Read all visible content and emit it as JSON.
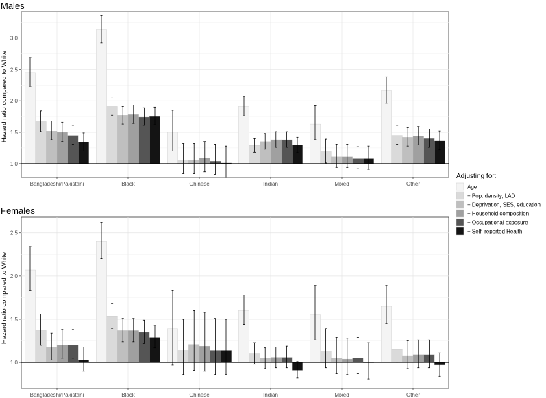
{
  "legend": {
    "title": "Adjusting for:",
    "entries": [
      {
        "name": "Age",
        "color": "#f4f4f4"
      },
      {
        "name": "+ Pop. density, LAD",
        "color": "#dadada"
      },
      {
        "name": "+ Deprivation, SES, education",
        "color": "#bfbfbf"
      },
      {
        "name": "+ Household composition",
        "color": "#a0a0a0"
      },
      {
        "name": "+ Occupational exposure",
        "color": "#555555"
      },
      {
        "name": "+ Self–reported Health",
        "color": "#141414"
      }
    ]
  },
  "chart_data": [
    {
      "type": "bar",
      "title": "Males",
      "ylabel": "Hazard ratio compared to White",
      "xlabel": "",
      "baseline": 1.0,
      "ylim": [
        0.78,
        3.42
      ],
      "yticks": [
        "1.0",
        "1.5",
        "2.0",
        "2.5",
        "3.0"
      ],
      "grid": true,
      "categories": [
        "Bangladeshi/Pakistani",
        "Black",
        "Chinese",
        "Indian",
        "Mixed",
        "Other"
      ],
      "series": [
        {
          "name": "Age",
          "values": [
            2.45,
            3.13,
            1.5,
            1.91,
            1.63,
            2.16
          ],
          "lower": [
            2.23,
            2.92,
            1.2,
            1.76,
            1.38,
            1.96
          ],
          "upper": [
            2.69,
            3.36,
            1.85,
            2.07,
            1.92,
            2.38
          ]
        },
        {
          "name": "+ Pop. density, LAD",
          "values": [
            1.67,
            1.91,
            1.06,
            1.29,
            1.19,
            1.45
          ],
          "lower": [
            1.51,
            1.77,
            0.84,
            1.18,
            1.01,
            1.31
          ],
          "upper": [
            1.84,
            2.06,
            1.32,
            1.4,
            1.39,
            1.61
          ]
        },
        {
          "name": "+ Deprivation, SES, education",
          "values": [
            1.52,
            1.77,
            1.06,
            1.35,
            1.11,
            1.42
          ],
          "lower": [
            1.38,
            1.63,
            0.84,
            1.23,
            0.94,
            1.28
          ],
          "upper": [
            1.68,
            1.91,
            1.32,
            1.48,
            1.31,
            1.57
          ]
        },
        {
          "name": "+ Household composition",
          "values": [
            1.5,
            1.78,
            1.09,
            1.38,
            1.11,
            1.44
          ],
          "lower": [
            1.35,
            1.64,
            0.87,
            1.26,
            0.94,
            1.3
          ],
          "upper": [
            1.66,
            1.93,
            1.35,
            1.51,
            1.31,
            1.59
          ]
        },
        {
          "name": "+ Occupational exposure",
          "values": [
            1.45,
            1.74,
            1.04,
            1.38,
            1.08,
            1.4
          ],
          "lower": [
            1.31,
            1.61,
            0.83,
            1.26,
            0.92,
            1.26
          ],
          "upper": [
            1.61,
            1.89,
            1.31,
            1.51,
            1.27,
            1.55
          ]
        },
        {
          "name": "+ Self–reported Health",
          "values": [
            1.34,
            1.75,
            1.01,
            1.3,
            1.08,
            1.36
          ],
          "lower": [
            1.2,
            1.62,
            0.78,
            1.18,
            0.91,
            1.22
          ],
          "upper": [
            1.49,
            1.9,
            1.28,
            1.42,
            1.28,
            1.52
          ]
        }
      ]
    },
    {
      "type": "bar",
      "title": "Females",
      "ylabel": "Hazard ratio compared to White",
      "xlabel": "",
      "baseline": 1.0,
      "ylim": [
        0.7,
        2.68
      ],
      "yticks": [
        "1.0",
        "1.5",
        "2.0",
        "2.5"
      ],
      "grid": true,
      "categories": [
        "Bangladeshi/Pakistani",
        "Black",
        "Chinese",
        "Indian",
        "Mixed",
        "Other"
      ],
      "series": [
        {
          "name": "Age",
          "values": [
            2.07,
            2.4,
            1.39,
            1.6,
            1.55,
            1.65
          ],
          "lower": [
            1.83,
            2.2,
            0.97,
            1.44,
            1.26,
            1.45
          ],
          "upper": [
            2.34,
            2.62,
            1.83,
            1.78,
            1.89,
            1.89
          ]
        },
        {
          "name": "+ Pop. density, LAD",
          "values": [
            1.37,
            1.53,
            1.14,
            1.1,
            1.13,
            1.15
          ],
          "lower": [
            1.2,
            1.39,
            0.86,
            0.98,
            0.94,
            1.0
          ],
          "upper": [
            1.56,
            1.68,
            1.5,
            1.23,
            1.39,
            1.33
          ]
        },
        {
          "name": "+ Deprivation, SES, education",
          "values": [
            1.18,
            1.37,
            1.21,
            1.05,
            1.05,
            1.08
          ],
          "lower": [
            1.03,
            1.24,
            0.91,
            0.93,
            0.87,
            0.93
          ],
          "upper": [
            1.34,
            1.51,
            1.6,
            1.17,
            1.29,
            1.25
          ]
        },
        {
          "name": "+ Household composition",
          "values": [
            1.2,
            1.37,
            1.19,
            1.06,
            1.04,
            1.09
          ],
          "lower": [
            1.05,
            1.24,
            0.9,
            0.94,
            0.86,
            0.94
          ],
          "upper": [
            1.38,
            1.51,
            1.58,
            1.18,
            1.28,
            1.26
          ]
        },
        {
          "name": "+ Occupational exposure",
          "values": [
            1.2,
            1.35,
            1.14,
            1.06,
            1.05,
            1.09
          ],
          "lower": [
            1.05,
            1.22,
            0.86,
            0.94,
            0.87,
            0.94
          ],
          "upper": [
            1.38,
            1.49,
            1.51,
            1.19,
            1.29,
            1.26
          ]
        },
        {
          "name": "+ Self–reported Health",
          "values": [
            1.03,
            1.29,
            1.14,
            0.91,
            1.0,
            0.97
          ],
          "lower": [
            0.9,
            1.17,
            0.86,
            0.82,
            0.81,
            0.84
          ],
          "upper": [
            1.18,
            1.43,
            1.5,
            1.01,
            1.23,
            1.11
          ]
        }
      ]
    }
  ]
}
